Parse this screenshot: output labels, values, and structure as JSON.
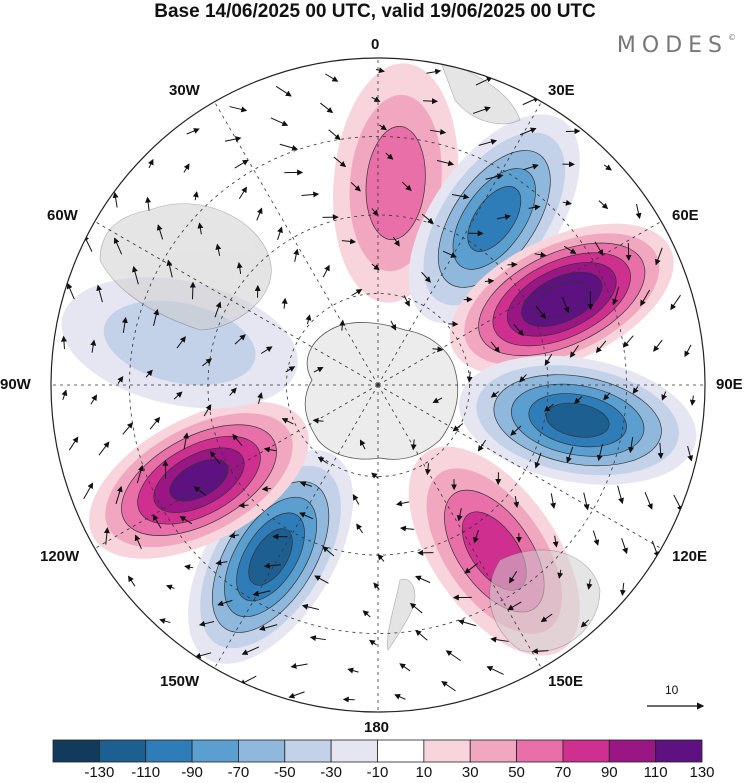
{
  "title": "Base 14/06/2025 00 UTC, valid 19/06/2025 00 UTC",
  "brand": "MODES",
  "brand_mark": "©",
  "longitude_labels": {
    "lon_0": "0",
    "lon_30e": "30E",
    "lon_60e": "60E",
    "lon_90e": "90E",
    "lon_120e": "120E",
    "lon_150e": "150E",
    "lon_180": "180",
    "lon_150w": "150W",
    "lon_120w": "120W",
    "lon_90w": "90W",
    "lon_60w": "60W",
    "lon_30w": "30W"
  },
  "vector_scale_label": "10",
  "colorbar": {
    "ticks": [
      "-130",
      "-110",
      "-90",
      "-70",
      "-50",
      "-30",
      "-10",
      "10",
      "30",
      "50",
      "70",
      "90",
      "110",
      "130"
    ],
    "colors": [
      "#123a5c",
      "#1e5f92",
      "#2f7db8",
      "#5a9fcf",
      "#8fb8dc",
      "#c3d2e8",
      "#e6e6f2",
      "#ffffff",
      "#f8d5dc",
      "#f2a7c0",
      "#e86fa8",
      "#cf2f8f",
      "#9a1685",
      "#5e1180"
    ]
  },
  "anomaly_lobes": [
    {
      "name": "lobe-0-positive",
      "lon_deg": 5,
      "sign": "positive",
      "peak": 60
    },
    {
      "name": "lobe-35e-negative",
      "lon_deg": 35,
      "sign": "negative",
      "peak": -100
    },
    {
      "name": "lobe-65e-positive",
      "lon_deg": 65,
      "sign": "positive",
      "peak": 130
    },
    {
      "name": "lobe-100e-negative",
      "lon_deg": 100,
      "sign": "negative",
      "peak": -110
    },
    {
      "name": "lobe-145e-positive",
      "lon_deg": 145,
      "sign": "positive",
      "peak": 80
    },
    {
      "name": "lobe-150w-negative",
      "lon_deg": -148,
      "sign": "negative",
      "peak": -110
    },
    {
      "name": "lobe-120w-positive",
      "lon_deg": -118,
      "sign": "positive",
      "peak": 110
    },
    {
      "name": "lobe-80w-negative",
      "lon_deg": -78,
      "sign": "negative",
      "peak": -40
    }
  ]
}
